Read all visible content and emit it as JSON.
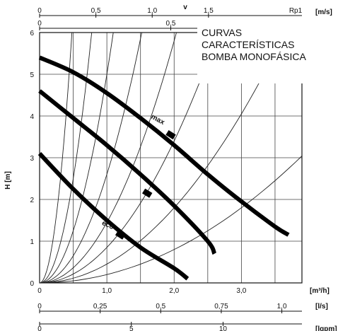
{
  "title_lines": [
    "CURVAS",
    "CARACTERÍSTICAS",
    "BOMBA MONOFÁSICA"
  ],
  "chart_data": {
    "type": "line",
    "xlabel": "[m³/h]",
    "ylabel": "H [m]",
    "xlim": [
      0,
      3.9
    ],
    "ylim": [
      0,
      6
    ],
    "x_ticks": [
      0,
      1.0,
      2.0,
      3.0
    ],
    "x_tick_labels": [
      "0",
      "1,0",
      "2,0",
      "3,0"
    ],
    "y_ticks": [
      0,
      1,
      2,
      3,
      4,
      5,
      6
    ],
    "y_tick_labels": [
      "0",
      "1",
      "2",
      "3",
      "4",
      "5",
      "6"
    ],
    "grid": true,
    "series": [
      {
        "name": "max",
        "x": [
          0,
          0.5,
          1.0,
          1.5,
          2.0,
          2.5,
          3.0,
          3.5,
          3.7
        ],
        "y": [
          5.4,
          5.05,
          4.55,
          3.95,
          3.3,
          2.6,
          1.95,
          1.35,
          1.15
        ]
      },
      {
        "name": "",
        "x": [
          0,
          0.5,
          1.0,
          1.5,
          2.0,
          2.5,
          2.6
        ],
        "y": [
          4.6,
          3.95,
          3.3,
          2.6,
          1.85,
          1.0,
          0.7
        ]
      },
      {
        "name": "eco",
        "x": [
          0,
          0.5,
          1.0,
          1.5,
          2.0,
          2.2
        ],
        "y": [
          3.1,
          2.25,
          1.5,
          0.85,
          0.35,
          0.1
        ]
      }
    ],
    "secondary_axes": [
      {
        "position": "top",
        "label": "v",
        "tick_labels": [
          "0",
          "0,5",
          "1,0",
          "1,5"
        ],
        "tick_values": [
          0,
          0.5,
          1.0,
          1.5
        ],
        "unit": "[m/s]",
        "note": "Rp1",
        "max_value": 2.33
      },
      {
        "position": "top",
        "tick_labels": [
          "0",
          "0,5"
        ],
        "tick_values": [
          0,
          0.5
        ],
        "max_value": 1.0
      },
      {
        "position": "bottom",
        "label": "[l/s]",
        "tick_labels": [
          "0",
          "0,25",
          "0,5",
          "0,75",
          "1,0"
        ],
        "tick_values": [
          0,
          0.25,
          0.5,
          0.75,
          1.0
        ],
        "max_value": 1.083
      },
      {
        "position": "bottom",
        "label": "[lgpm]",
        "tick_labels": [
          "0",
          "5",
          "10"
        ],
        "tick_values": [
          0,
          5,
          10
        ],
        "max_value": 14.3
      }
    ]
  }
}
